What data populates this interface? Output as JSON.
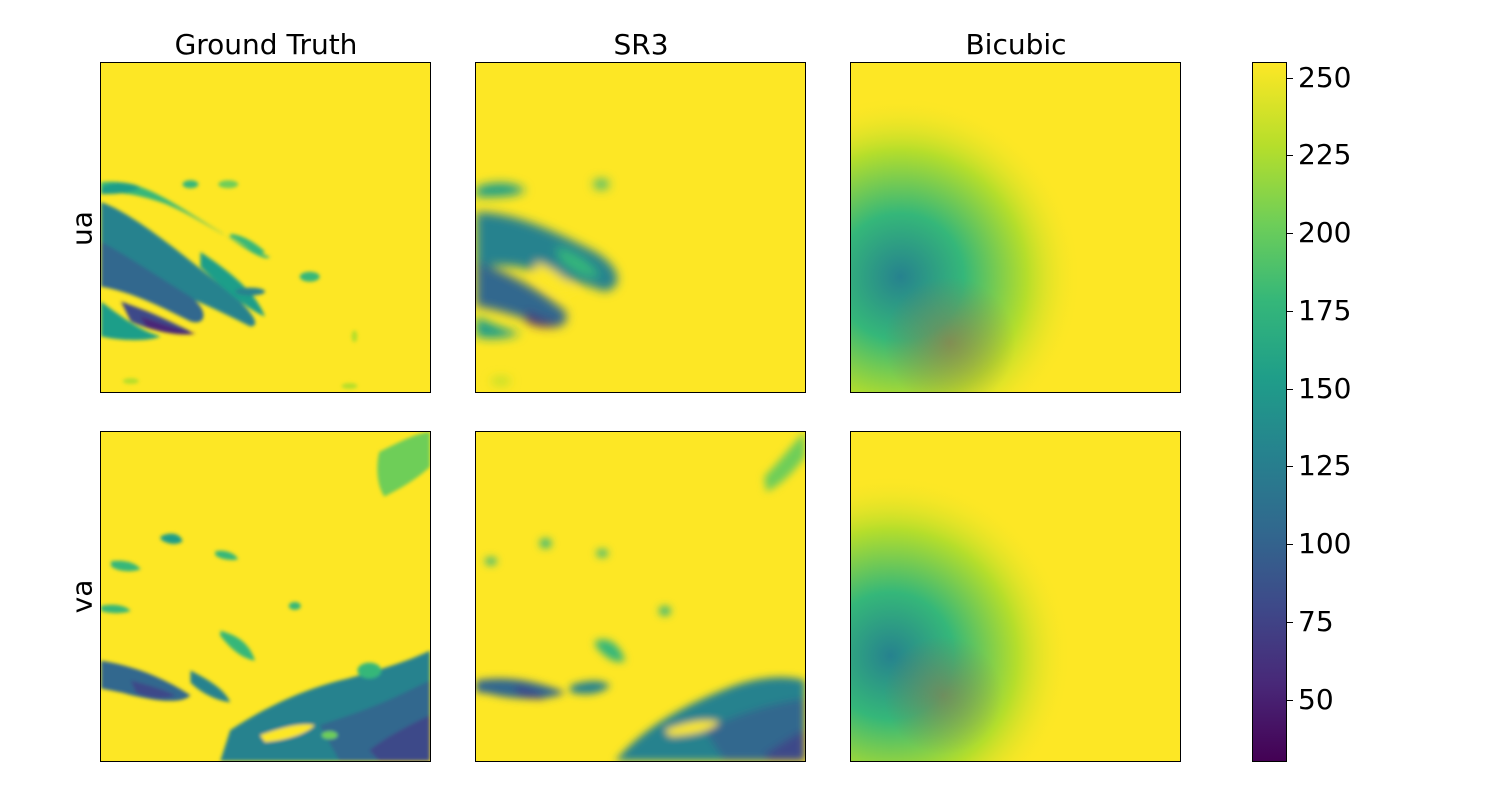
{
  "figure": {
    "columns": [
      "Ground Truth",
      "SR3",
      "Bicubic"
    ],
    "rows": [
      "ua",
      "va"
    ]
  },
  "chart_data": {
    "type": "heatmap",
    "colormap": "viridis",
    "colorbar": {
      "range": [
        30,
        255
      ],
      "ticks": [
        50,
        75,
        100,
        125,
        150,
        175,
        200,
        225,
        250
      ],
      "tick_labels": [
        "50",
        "75",
        "100",
        "125",
        "150",
        "175",
        "200",
        "225",
        "250"
      ]
    },
    "panels": [
      {
        "row": "ua",
        "column": "Ground Truth",
        "background_value": 255,
        "min_value": 40
      },
      {
        "row": "ua",
        "column": "SR3",
        "background_value": 255,
        "min_value": 45
      },
      {
        "row": "ua",
        "column": "Bicubic",
        "background_value": 255,
        "min_value": 130
      },
      {
        "row": "va",
        "column": "Ground Truth",
        "background_value": 255,
        "min_value": 40
      },
      {
        "row": "va",
        "column": "SR3",
        "background_value": 255,
        "min_value": 40
      },
      {
        "row": "va",
        "column": "Bicubic",
        "background_value": 255,
        "min_value": 140
      }
    ]
  }
}
